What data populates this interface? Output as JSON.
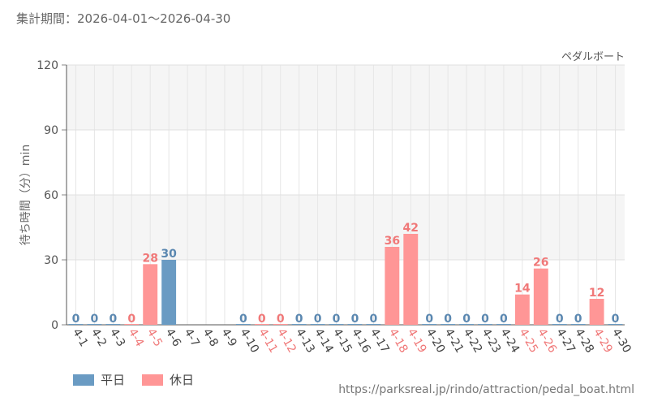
{
  "period_label": "集計期間：2026-04-01～2026-04-30",
  "source_url": "https://parksreal.jp/rindo/attraction/pedal_boat.html",
  "colors": {
    "weekday": "#6a9bc3",
    "holiday": "#ff9696",
    "weekday_label": "#5a87b0",
    "holiday_label": "#f07878"
  },
  "chart_data": {
    "type": "bar",
    "title": "ペダルボート",
    "ylabel": "待ち時間（分）min",
    "xlabel": "",
    "ylim": [
      0,
      120
    ],
    "yticks": [
      "0",
      "30",
      "60",
      "90",
      "120"
    ],
    "grid": true,
    "legend": [
      {
        "name": "平日",
        "key": "weekday"
      },
      {
        "name": "休日",
        "key": "holiday"
      }
    ],
    "categories": [
      "4-1",
      "4-2",
      "4-3",
      "4-4",
      "4-5",
      "4-6",
      "4-7",
      "4-8",
      "4-9",
      "4-10",
      "4-11",
      "4-12",
      "4-13",
      "4-14",
      "4-15",
      "4-16",
      "4-17",
      "4-18",
      "4-19",
      "4-20",
      "4-21",
      "4-22",
      "4-23",
      "4-24",
      "4-25",
      "4-26",
      "4-27",
      "4-28",
      "4-29",
      "4-30"
    ],
    "values": [
      0,
      0,
      0,
      0,
      28,
      30,
      null,
      null,
      null,
      0,
      0,
      0,
      0,
      0,
      0,
      0,
      0,
      36,
      42,
      0,
      0,
      0,
      0,
      0,
      14,
      26,
      0,
      0,
      12,
      0
    ],
    "day_type": [
      "weekday",
      "weekday",
      "weekday",
      "holiday",
      "holiday",
      "weekday",
      "weekday",
      "weekday",
      "weekday",
      "weekday",
      "holiday",
      "holiday",
      "weekday",
      "weekday",
      "weekday",
      "weekday",
      "weekday",
      "holiday",
      "holiday",
      "weekday",
      "weekday",
      "weekday",
      "weekday",
      "weekday",
      "holiday",
      "holiday",
      "weekday",
      "weekday",
      "holiday",
      "weekday"
    ]
  }
}
